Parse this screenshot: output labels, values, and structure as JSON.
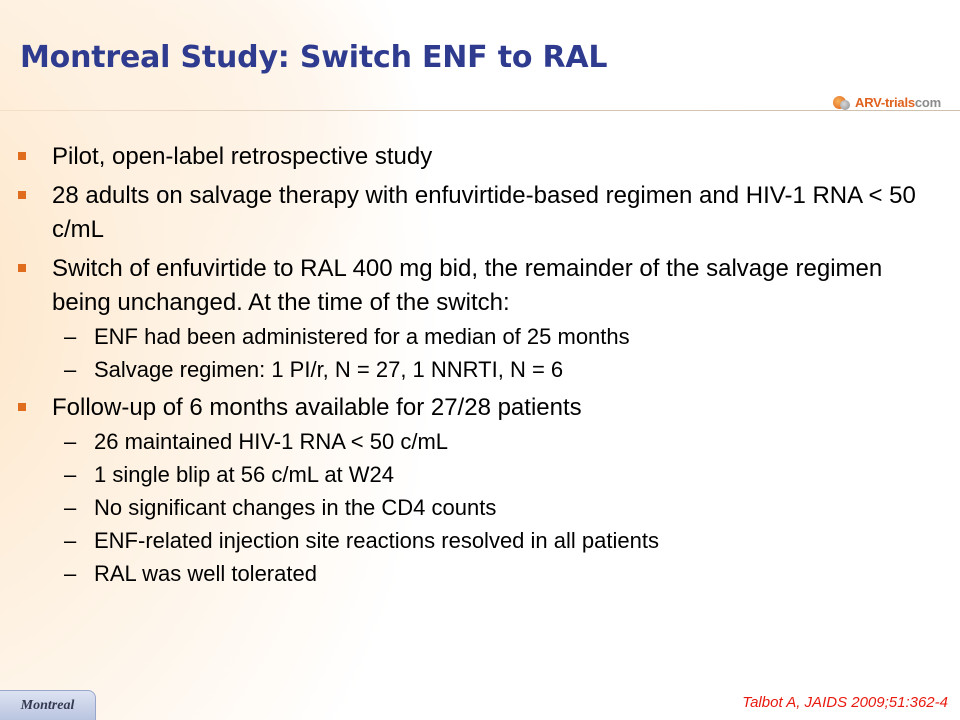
{
  "title": "Montreal Study: Switch ENF to RAL",
  "logo": {
    "brand": "ARV-trials",
    "suffix": "com"
  },
  "bullets": [
    {
      "text": "Pilot, open-label retrospective study",
      "subs": []
    },
    {
      "text": "28 adults on salvage therapy with enfuvirtide-based regimen and HIV-1 RNA < 50 c/mL",
      "subs": []
    },
    {
      "text": "Switch of enfuvirtide to RAL 400 mg bid, the remainder of the salvage regimen being unchanged. At the time of the switch:",
      "subs": [
        "ENF had been administered for a median of 25 months",
        "Salvage regimen: 1 PI/r, N = 27, 1 NNRTI, N = 6"
      ]
    },
    {
      "text": "Follow-up of 6 months available for 27/28 patients",
      "subs": [
        "26 maintained HIV-1 RNA < 50 c/mL",
        "1 single blip at 56 c/mL at W24",
        "No significant changes in the CD4 counts",
        "ENF-related injection site reactions resolved in all patients",
        "RAL was well tolerated"
      ]
    }
  ],
  "footer": {
    "tab_label": "Montreal",
    "citation": "Talbot A, JAIDS 2009;51:362-4"
  },
  "colors": {
    "title": "#2e3b8f",
    "bullet_marker": "#e06c1d",
    "citation": "#e8190f"
  }
}
